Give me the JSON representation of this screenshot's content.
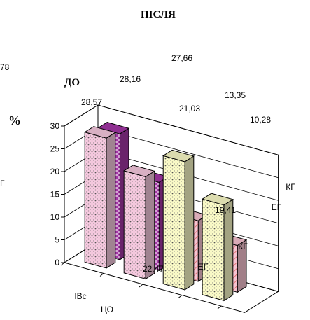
{
  "chart_data": {
    "type": "bar",
    "title": "ПІСЛЯ",
    "subtitle": "ДО",
    "ylabel": "%",
    "ylim": [
      0,
      30
    ],
    "yticks": [
      0,
      5,
      10,
      15,
      20,
      25,
      30
    ],
    "categories": [
      "ЕГ",
      "КГ",
      "ЕГ",
      "КГ"
    ],
    "series": [
      {
        "name": "ЦО",
        "values": [
          28.57,
          22.47,
          28.16,
          21.03
        ],
        "colors": [
          "#f6c9df",
          "#f6c9df",
          "#fbfbc8",
          "#fbfbc8"
        ]
      },
      {
        "name": "ІВс",
        "values": [
          27.66,
          19.41,
          13.35,
          10.28
        ],
        "colors": [
          "#a336a5",
          "#a336a5",
          "#f7c3d1",
          "#f7c3d1"
        ]
      }
    ],
    "data_labels": [
      "28,57",
      "22,47",
      "28,16",
      "21,03",
      "27,66",
      "19,41",
      "13,35",
      "10,28"
    ],
    "grid": true,
    "partial_labels": [
      "78",
      "Г"
    ]
  }
}
